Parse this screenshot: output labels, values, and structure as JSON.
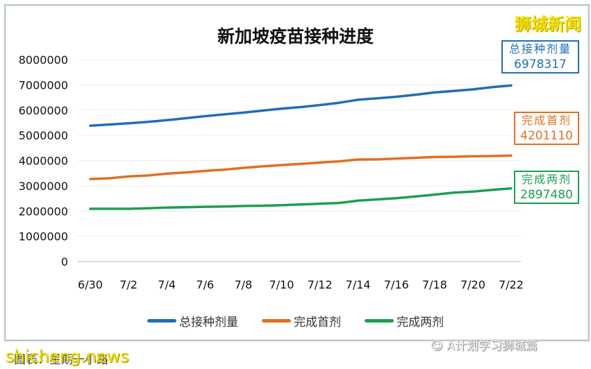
{
  "chart_data": {
    "type": "line",
    "title": "新加坡疫苗接种进度",
    "xlabel": "",
    "ylabel": "",
    "ylim": [
      0,
      8000000
    ],
    "yticks": [
      0,
      1000000,
      2000000,
      3000000,
      4000000,
      5000000,
      6000000,
      7000000,
      8000000
    ],
    "ytick_labels": [
      "0",
      "1000000",
      "2000000",
      "3000000",
      "4000000",
      "5000000",
      "6000000",
      "7000000",
      "8000000"
    ],
    "x": [
      "6/30",
      "7/1",
      "7/2",
      "7/3",
      "7/4",
      "7/5",
      "7/6",
      "7/7",
      "7/8",
      "7/9",
      "7/10",
      "7/11",
      "7/12",
      "7/13",
      "7/14",
      "7/15",
      "7/16",
      "7/17",
      "7/18",
      "7/19",
      "7/20",
      "7/21",
      "7/22"
    ],
    "xtick_labels": [
      "6/30",
      "7/2",
      "7/4",
      "7/6",
      "7/8",
      "7/10",
      "7/12",
      "7/14",
      "7/16",
      "7/18",
      "7/20",
      "7/22"
    ],
    "grid": true,
    "legend_position": "bottom",
    "series": [
      {
        "name": "总接种剂量",
        "color": "#1f6fb5",
        "values": [
          5380000,
          5430000,
          5480000,
          5530000,
          5600000,
          5680000,
          5760000,
          5830000,
          5900000,
          5980000,
          6060000,
          6120000,
          6200000,
          6290000,
          6410000,
          6470000,
          6530000,
          6610000,
          6700000,
          6760000,
          6820000,
          6910000,
          6978317
        ]
      },
      {
        "name": "完成首剂",
        "color": "#e07020",
        "values": [
          3270000,
          3300000,
          3370000,
          3410000,
          3480000,
          3530000,
          3590000,
          3640000,
          3710000,
          3770000,
          3820000,
          3870000,
          3920000,
          3970000,
          4040000,
          4050000,
          4080000,
          4110000,
          4140000,
          4150000,
          4170000,
          4180000,
          4201110
        ]
      },
      {
        "name": "完成两剂",
        "color": "#1aa050",
        "values": [
          2090000,
          2090000,
          2090000,
          2110000,
          2140000,
          2150000,
          2170000,
          2180000,
          2200000,
          2210000,
          2230000,
          2260000,
          2290000,
          2320000,
          2410000,
          2460000,
          2510000,
          2580000,
          2650000,
          2730000,
          2770000,
          2840000,
          2897480
        ]
      }
    ],
    "annotations": [
      {
        "label": "总接种剂量",
        "value": "6978317",
        "color": "#1f6fb5"
      },
      {
        "label": "完成首剂",
        "value": "4201110",
        "color": "#e07020"
      },
      {
        "label": "完成两剂",
        "value": "2897480",
        "color": "#1aa050"
      }
    ]
  },
  "title": "新加坡疫苗接种进度",
  "brand": "狮城新闻",
  "legend": [
    {
      "label": "总接种剂量",
      "color": "#1f6fb5"
    },
    {
      "label": "完成首剂",
      "color": "#e07020"
    },
    {
      "label": "完成两剂",
      "color": "#1aa050"
    }
  ],
  "callouts": [
    {
      "label": "总接种剂量",
      "value": "6978317",
      "color": "#1f6fb5"
    },
    {
      "label": "完成首剂",
      "value": "4201110",
      "color": "#e07020"
    },
    {
      "label": "完成两剂",
      "value": "2897480",
      "color": "#1aa050"
    }
  ],
  "footer": {
    "watermark_left": "shicheng.news",
    "caption": "图表：星期一小路",
    "watermark_right": "A计划学习狮城篇"
  }
}
